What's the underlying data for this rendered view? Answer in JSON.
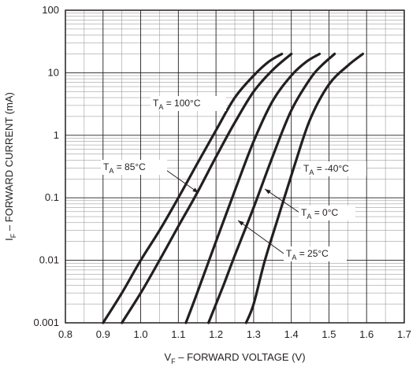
{
  "chart_data": {
    "type": "line",
    "xlabel": {
      "main": "V",
      "sub": "F",
      "rest": " – FORWARD VOLTAGE (V)"
    },
    "ylabel": {
      "main": "I",
      "sub": "F",
      "rest": " – FORWARD CURRENT (mA)"
    },
    "xlim": [
      0.8,
      1.7
    ],
    "ylim": [
      0.001,
      100
    ],
    "yscale": "log",
    "grid": true,
    "x_ticks": [
      "0.8",
      "0.9",
      "1.0",
      "1.1",
      "1.2",
      "1.3",
      "1.4",
      "1.5",
      "1.6",
      "1.7"
    ],
    "y_ticks": [
      "0.001",
      "0.01",
      "0.1",
      "1",
      "10",
      "100"
    ],
    "series": [
      {
        "name": "T_A = 100°C",
        "label_main": "T",
        "label_sub": "A",
        "label_rest": " = 100°C",
        "points": [
          [
            0.9,
            0.001
          ],
          [
            0.95,
            0.003
          ],
          [
            1.0,
            0.01
          ],
          [
            1.05,
            0.03
          ],
          [
            1.1,
            0.1
          ],
          [
            1.15,
            0.35
          ],
          [
            1.2,
            1.2
          ],
          [
            1.25,
            4
          ],
          [
            1.3,
            9
          ],
          [
            1.34,
            15
          ],
          [
            1.375,
            20
          ]
        ]
      },
      {
        "name": "T_A = 85°C",
        "label_main": "T",
        "label_sub": "A",
        "label_rest": " = 85°C",
        "points": [
          [
            0.95,
            0.001
          ],
          [
            1.0,
            0.003
          ],
          [
            1.05,
            0.01
          ],
          [
            1.1,
            0.035
          ],
          [
            1.15,
            0.12
          ],
          [
            1.2,
            0.45
          ],
          [
            1.25,
            1.6
          ],
          [
            1.3,
            5
          ],
          [
            1.35,
            11
          ],
          [
            1.4,
            20
          ]
        ]
      },
      {
        "name": "T_A = 25°C",
        "label_main": "T",
        "label_sub": "A",
        "label_rest": " = 25°C",
        "points": [
          [
            1.12,
            0.001
          ],
          [
            1.15,
            0.003
          ],
          [
            1.2,
            0.02
          ],
          [
            1.25,
            0.13
          ],
          [
            1.3,
            0.8
          ],
          [
            1.35,
            3.5
          ],
          [
            1.4,
            9
          ],
          [
            1.44,
            15
          ],
          [
            1.475,
            20
          ]
        ]
      },
      {
        "name": "T_A = 0°C",
        "label_main": "T",
        "label_sub": "A",
        "label_rest": " = 0°C",
        "points": [
          [
            1.18,
            0.001
          ],
          [
            1.22,
            0.004
          ],
          [
            1.25,
            0.012
          ],
          [
            1.3,
            0.07
          ],
          [
            1.35,
            0.45
          ],
          [
            1.4,
            2.5
          ],
          [
            1.45,
            8
          ],
          [
            1.48,
            13
          ],
          [
            1.515,
            20
          ]
        ]
      },
      {
        "name": "T_A = -40°C",
        "label_main": "T",
        "label_sub": "A",
        "label_rest": " = -40°C",
        "points": [
          [
            1.28,
            0.001
          ],
          [
            1.3,
            0.002
          ],
          [
            1.33,
            0.01
          ],
          [
            1.37,
            0.06
          ],
          [
            1.41,
            0.35
          ],
          [
            1.45,
            1.8
          ],
          [
            1.5,
            6.5
          ],
          [
            1.55,
            13
          ],
          [
            1.59,
            20
          ]
        ]
      }
    ]
  }
}
